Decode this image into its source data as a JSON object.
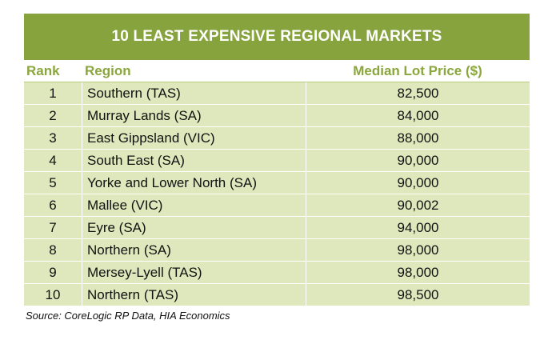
{
  "chart_data": {
    "type": "table",
    "title": "10 LEAST EXPENSIVE REGIONAL MARKETS",
    "columns": [
      "Rank",
      "Region",
      "Median Lot Price ($)"
    ],
    "rows": [
      {
        "rank": "1",
        "region": "Southern (TAS)",
        "price": "82,500"
      },
      {
        "rank": "2",
        "region": "Murray Lands (SA)",
        "price": "84,000"
      },
      {
        "rank": "3",
        "region": "East Gippsland (VIC)",
        "price": "88,000"
      },
      {
        "rank": "4",
        "region": "South East (SA)",
        "price": "90,000"
      },
      {
        "rank": "5",
        "region": "Yorke and Lower North (SA)",
        "price": "90,000"
      },
      {
        "rank": "6",
        "region": "Mallee (VIC)",
        "price": "90,002"
      },
      {
        "rank": "7",
        "region": "Eyre (SA)",
        "price": "94,000"
      },
      {
        "rank": "8",
        "region": "Northern (SA)",
        "price": "98,000"
      },
      {
        "rank": "9",
        "region": "Mersey-Lyell (TAS)",
        "price": "98,000"
      },
      {
        "rank": "10",
        "region": "Northern (TAS)",
        "price": "98,500"
      }
    ],
    "source": "Source: CoreLogic RP Data, HIA Economics"
  },
  "colors": {
    "title_bg": "#87a33d",
    "header_text": "#8aa63d",
    "row_bg": "#dfe8bc"
  }
}
